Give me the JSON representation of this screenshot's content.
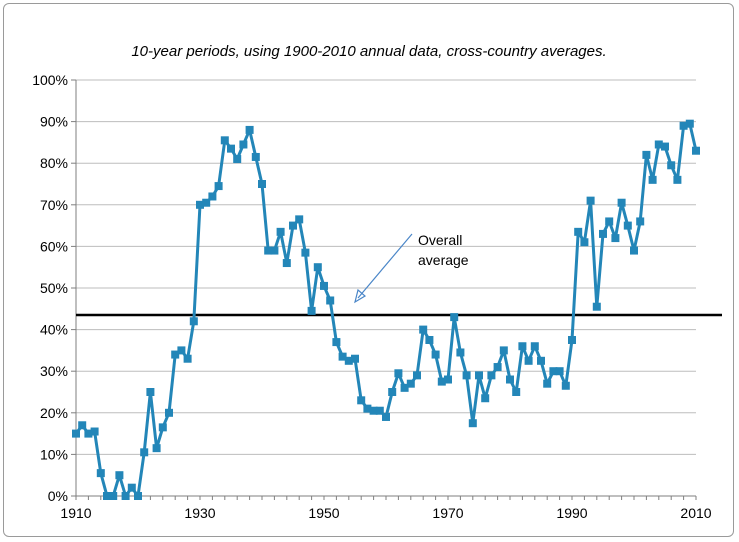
{
  "chart_data": {
    "type": "line",
    "title": "",
    "subtitle": "10-year periods, using 1900-2010 annual data, cross-country averages.",
    "xlabel": "",
    "ylabel": "",
    "xlim": [
      1910,
      2010
    ],
    "ylim": [
      0,
      100
    ],
    "x_ticks": [
      "1910",
      "1930",
      "1950",
      "1970",
      "1990",
      "2010"
    ],
    "y_ticks": [
      "0%",
      "10%",
      "20%",
      "30%",
      "40%",
      "50%",
      "60%",
      "70%",
      "80%",
      "90%",
      "100%"
    ],
    "grid": "horizontal",
    "colors": {
      "series": "#2386B8",
      "reference": "#000000"
    },
    "reference_line": {
      "value": 43.5,
      "label_line1": "Overall",
      "label_line2": "average"
    },
    "series": [
      {
        "x": [
          1910,
          1911,
          1912,
          1913,
          1914,
          1915,
          1916,
          1917,
          1918,
          1919,
          1920,
          1921,
          1922,
          1923,
          1924,
          1925,
          1926,
          1927,
          1928,
          1929,
          1930,
          1931,
          1932,
          1933,
          1934,
          1935,
          1936,
          1937,
          1938,
          1939,
          1940,
          1941,
          1942,
          1943,
          1944,
          1945,
          1946,
          1947,
          1948,
          1949,
          1950,
          1951,
          1952,
          1953,
          1954,
          1955,
          1956,
          1957,
          1958,
          1959,
          1960,
          1961,
          1962,
          1963,
          1964,
          1965,
          1966,
          1967,
          1968,
          1969,
          1970,
          1971,
          1972,
          1973,
          1974,
          1975,
          1976,
          1977,
          1978,
          1979,
          1980,
          1981,
          1982,
          1983,
          1984,
          1985,
          1986,
          1987,
          1988,
          1989,
          1990,
          1991,
          1992,
          1993,
          1994,
          1995,
          1996,
          1997,
          1998,
          1999,
          2000,
          2001,
          2002,
          2003,
          2004,
          2005,
          2006,
          2007,
          2008,
          2009,
          2010
        ],
        "values": [
          15,
          17,
          15,
          15.5,
          5.5,
          0,
          0,
          5,
          0,
          2,
          0,
          10.5,
          25,
          11.5,
          16.5,
          20,
          34,
          35,
          33,
          42,
          70,
          70.5,
          72,
          74.5,
          85.5,
          83.5,
          81,
          84.5,
          88,
          81.5,
          75,
          59,
          59,
          63.5,
          56,
          65,
          66.5,
          58.5,
          44.5,
          55,
          50.5,
          47,
          37,
          33.5,
          32.5,
          33,
          23,
          21,
          20.5,
          20.5,
          19,
          25,
          29.5,
          26,
          27,
          29,
          40,
          37.5,
          34,
          27.5,
          28,
          43,
          34.5,
          29,
          17.5,
          29,
          23.5,
          29,
          31,
          35,
          28,
          25,
          36,
          32.5,
          36,
          32.5,
          27,
          30,
          30,
          26.5,
          37.5,
          63.5,
          61,
          71,
          45.5,
          63,
          66,
          62,
          70.5,
          65,
          59,
          66,
          82,
          76,
          84.5,
          84,
          79.5,
          76,
          89,
          89.5,
          83
        ]
      }
    ]
  }
}
